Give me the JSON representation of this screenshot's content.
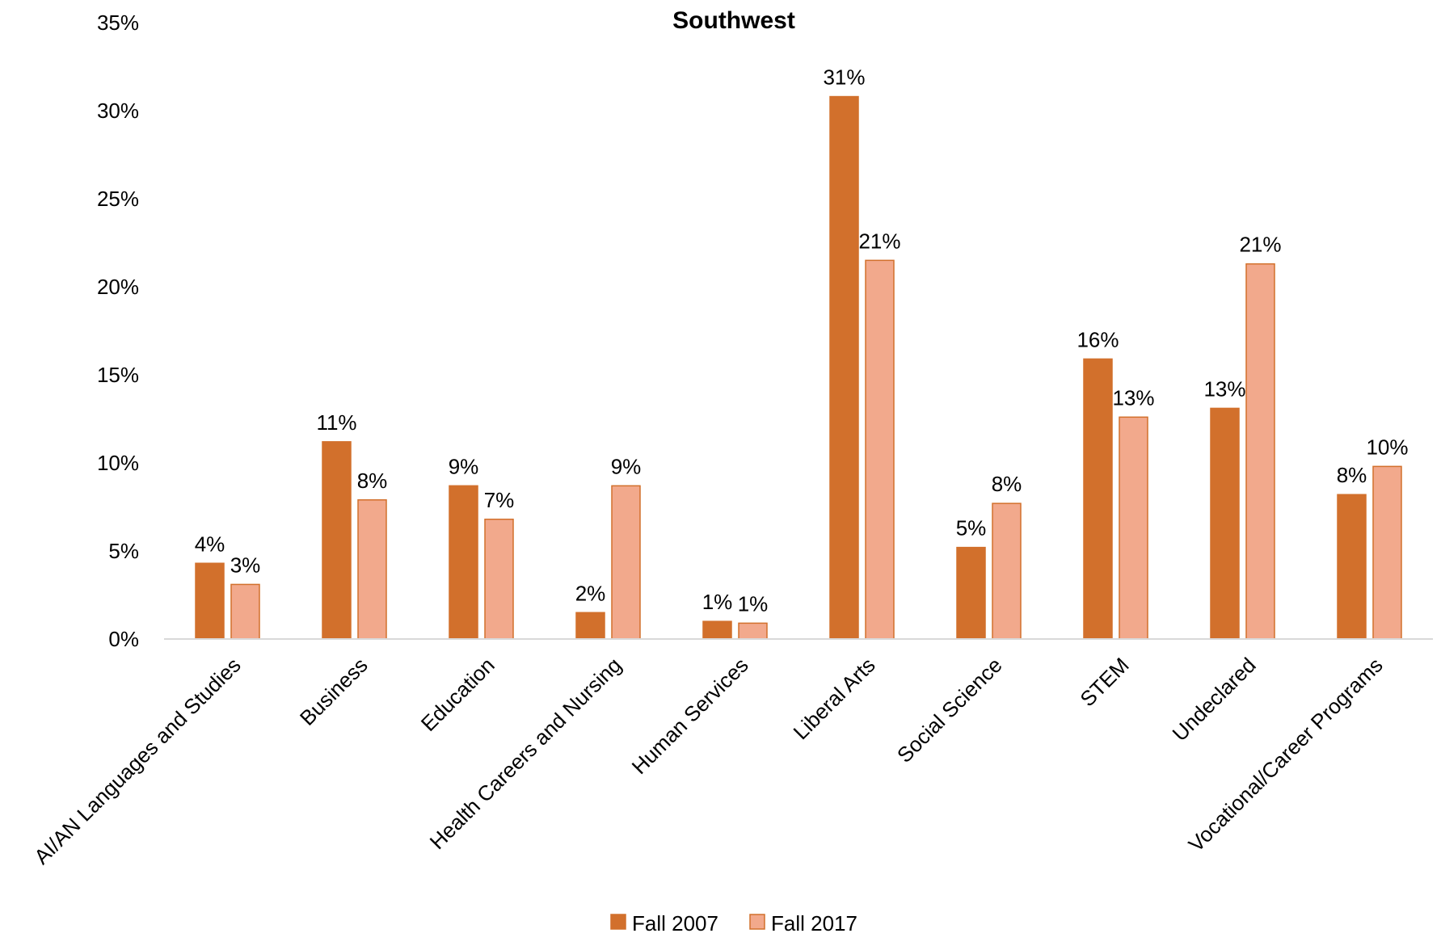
{
  "chart_data": {
    "type": "bar",
    "title": "Southwest",
    "xlabel": "",
    "ylabel": "",
    "ylim": [
      0,
      35
    ],
    "yticks": [
      0,
      5,
      10,
      15,
      20,
      25,
      30,
      35
    ],
    "ytick_suffix": "%",
    "grid": false,
    "legend_position": "bottom",
    "categories": [
      "AI/AN Languages and Studies",
      "Business",
      "Education",
      "Health Careers and Nursing",
      "Human Services",
      "Liberal Arts",
      "Social Science",
      "STEM",
      "Undeclared",
      "Vocational/Career Programs"
    ],
    "series": [
      {
        "name": "Fall 2007",
        "color": "#d2702c",
        "values": [
          4.3,
          11.2,
          8.7,
          1.5,
          1.0,
          30.8,
          5.2,
          15.9,
          13.1,
          8.2
        ],
        "labels": [
          "4%",
          "11%",
          "9%",
          "2%",
          "1%",
          "31%",
          "5%",
          "16%",
          "13%",
          "8%"
        ]
      },
      {
        "name": "Fall 2017",
        "color": "#f2a98c",
        "values": [
          3.1,
          7.9,
          6.8,
          8.7,
          0.9,
          21.5,
          7.7,
          12.6,
          21.3,
          9.8
        ],
        "labels": [
          "3%",
          "8%",
          "7%",
          "9%",
          "1%",
          "21%",
          "8%",
          "13%",
          "21%",
          "10%"
        ]
      }
    ]
  }
}
